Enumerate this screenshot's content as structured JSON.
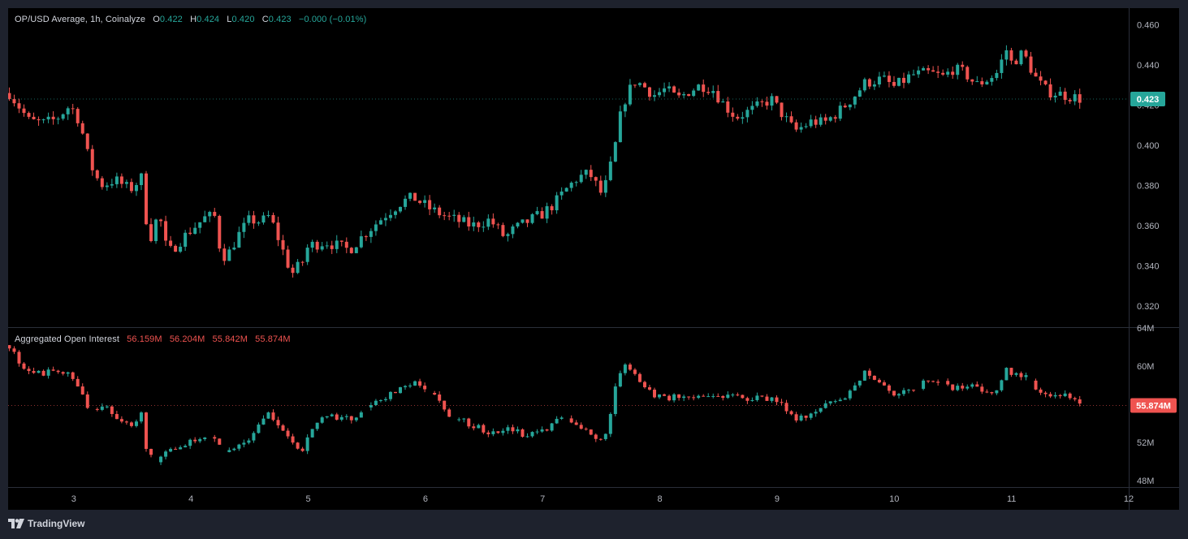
{
  "price_legend": {
    "title": "OP/USD Average, 1h, Coinalyze",
    "o_key": "O",
    "o_val": "0.422",
    "h_key": "H",
    "h_val": "0.424",
    "l_key": "L",
    "l_val": "0.420",
    "c_key": "C",
    "c_val": "0.423",
    "change": "−0.000 (−0.01%)"
  },
  "oi_legend": {
    "title": "Aggregated Open Interest",
    "o_val": "56.159M",
    "h_val": "56.204M",
    "l_val": "55.842M",
    "c_val": "55.874M"
  },
  "brand": {
    "name": "TradingView",
    "icon": "tradingview-logo-icon"
  },
  "colors": {
    "up": "#26a69a",
    "down": "#ef5350",
    "background": "#000000",
    "frame": "#1e222d",
    "text": "#d1d4dc",
    "axis_text": "#b2b5be",
    "divider": "#2a2e39"
  },
  "chart_data": [
    {
      "type": "candlestick",
      "title": "OP/USD Average, 1h, Coinalyze",
      "ylim": [
        0.31,
        0.465
      ],
      "y_ticks": [
        "0.460",
        "0.440",
        "0.420",
        "0.400",
        "0.380",
        "0.360",
        "0.340",
        "0.320"
      ],
      "y_tick_values": [
        0.46,
        0.44,
        0.42,
        0.4,
        0.38,
        0.36,
        0.34,
        0.32
      ],
      "last_value_label": "0.423",
      "last_value": 0.423,
      "x_ticks": [
        "3",
        "4",
        "5",
        "6",
        "7",
        "8",
        "9",
        "10",
        "11",
        "12"
      ],
      "x_tick_values": [
        3,
        4,
        5,
        6,
        7,
        8,
        9,
        10,
        11,
        12
      ],
      "xlim": [
        2.44,
        12.0
      ],
      "anchors_x": [
        2.45,
        2.55,
        2.62,
        2.75,
        2.85,
        2.97,
        3.05,
        3.12,
        3.18,
        3.25,
        3.35,
        3.48,
        3.58,
        3.62,
        3.67,
        3.72,
        3.8,
        3.9,
        4.0,
        4.12,
        4.2,
        4.25,
        4.3,
        4.4,
        4.5,
        4.6,
        4.67,
        4.75,
        4.8,
        4.86,
        4.95,
        5.0,
        5.15,
        5.35,
        5.5,
        5.65,
        5.8,
        5.9,
        6.05,
        6.2,
        6.4,
        6.55,
        6.68,
        6.75,
        6.9,
        7.0,
        7.1,
        7.2,
        7.3,
        7.4,
        7.5,
        7.55,
        7.62,
        7.68,
        7.78,
        7.85,
        7.95,
        8.05,
        8.15,
        8.25,
        8.35,
        8.45,
        8.55,
        8.65,
        8.8,
        8.95,
        9.05,
        9.15,
        9.3,
        9.4,
        9.55,
        9.65,
        9.75,
        9.9,
        10.0,
        10.15,
        10.3,
        10.42,
        10.5,
        10.6,
        10.7,
        10.8,
        10.9,
        10.94,
        11.0,
        11.1,
        11.15,
        11.22,
        11.3,
        11.45,
        11.6
      ],
      "anchors_y": [
        0.426,
        0.418,
        0.412,
        0.411,
        0.413,
        0.42,
        0.412,
        0.395,
        0.385,
        0.38,
        0.383,
        0.378,
        0.384,
        0.362,
        0.353,
        0.368,
        0.346,
        0.352,
        0.358,
        0.364,
        0.365,
        0.348,
        0.344,
        0.355,
        0.363,
        0.362,
        0.365,
        0.353,
        0.345,
        0.336,
        0.342,
        0.35,
        0.352,
        0.348,
        0.357,
        0.365,
        0.372,
        0.374,
        0.368,
        0.364,
        0.36,
        0.363,
        0.354,
        0.358,
        0.363,
        0.366,
        0.371,
        0.378,
        0.384,
        0.386,
        0.376,
        0.382,
        0.4,
        0.42,
        0.432,
        0.43,
        0.425,
        0.428,
        0.423,
        0.427,
        0.43,
        0.428,
        0.42,
        0.414,
        0.418,
        0.423,
        0.415,
        0.407,
        0.412,
        0.411,
        0.418,
        0.424,
        0.431,
        0.433,
        0.429,
        0.435,
        0.436,
        0.434,
        0.438,
        0.436,
        0.43,
        0.433,
        0.437,
        0.45,
        0.441,
        0.446,
        0.44,
        0.432,
        0.427,
        0.425,
        0.423
      ]
    },
    {
      "type": "candlestick",
      "title": "Aggregated Open Interest",
      "ylim": [
        47.5,
        64
      ],
      "y_ticks": [
        "64M",
        "60M",
        "52M",
        "48M"
      ],
      "y_tick_values": [
        64,
        60,
        52,
        48
      ],
      "last_value_label": "55.874M",
      "last_value": 55.874,
      "anchors_x": [
        2.45,
        2.55,
        2.62,
        2.75,
        2.85,
        2.97,
        3.05,
        3.12,
        3.18,
        3.25,
        3.35,
        3.48,
        3.58,
        3.62,
        3.67,
        3.72,
        3.8,
        3.9,
        4.0,
        4.12,
        4.2,
        4.25,
        4.3,
        4.4,
        4.5,
        4.6,
        4.67,
        4.75,
        4.8,
        4.86,
        4.95,
        5.0,
        5.15,
        5.35,
        5.5,
        5.65,
        5.8,
        5.9,
        6.05,
        6.2,
        6.4,
        6.55,
        6.68,
        6.75,
        6.9,
        7.0,
        7.1,
        7.2,
        7.3,
        7.4,
        7.5,
        7.55,
        7.62,
        7.68,
        7.78,
        7.85,
        7.95,
        8.05,
        8.15,
        8.25,
        8.35,
        8.45,
        8.55,
        8.65,
        8.8,
        8.95,
        9.05,
        9.15,
        9.3,
        9.4,
        9.55,
        9.65,
        9.75,
        9.9,
        10.0,
        10.15,
        10.3,
        10.42,
        10.5,
        10.6,
        10.7,
        10.8,
        10.9,
        10.94,
        11.0,
        11.1,
        11.15,
        11.22,
        11.3,
        11.45,
        11.6
      ],
      "anchors_y": [
        62.2,
        60.1,
        59.5,
        59.2,
        59.5,
        58.9,
        57.9,
        55.4,
        55.2,
        56.1,
        54.2,
        53.8,
        54.9,
        50.8,
        50.4,
        50.2,
        50.9,
        51.5,
        52.0,
        52.5,
        52.2,
        52.0,
        51.0,
        51.5,
        52.5,
        54.5,
        55.2,
        53.5,
        53.0,
        51.8,
        51.2,
        53.0,
        55.0,
        54.4,
        55.5,
        56.6,
        57.9,
        58.2,
        57.2,
        55.0,
        53.8,
        53.0,
        53.4,
        53.1,
        52.8,
        53.2,
        54.2,
        54.6,
        53.5,
        53.2,
        52.0,
        53.1,
        57.6,
        60.4,
        59.0,
        57.8,
        57.0,
        56.5,
        56.8,
        56.8,
        57.0,
        57.2,
        56.7,
        56.7,
        56.6,
        56.5,
        56.0,
        54.3,
        55.2,
        56.0,
        56.6,
        57.6,
        59.6,
        57.8,
        57.0,
        57.3,
        58.7,
        58.3,
        57.8,
        58.0,
        57.8,
        57.2,
        58.0,
        60.0,
        59.2,
        58.6,
        59.0,
        57.6,
        57.2,
        56.9,
        55.9
      ]
    }
  ]
}
